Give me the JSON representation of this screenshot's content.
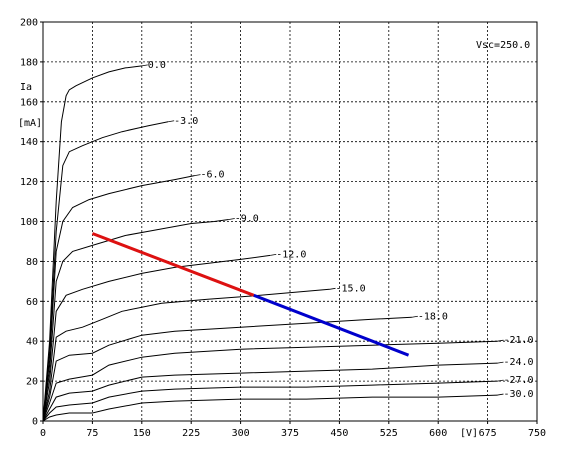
{
  "chart_data": {
    "type": "line",
    "ylabel_top": "Ia",
    "ylabel_unit": "[mA]",
    "xlabel": "[V]",
    "annotation": "Vsc=250.0",
    "xlim": [
      0,
      750
    ],
    "ylim": [
      0,
      200
    ],
    "x_ticks": [
      "0",
      "75",
      "150",
      "225",
      "300",
      "375",
      "450",
      "525",
      "600",
      "675",
      "750"
    ],
    "y_ticks": [
      "0",
      "20",
      "40",
      "60",
      "80",
      "100",
      "120",
      "140",
      "160",
      "180",
      "200"
    ],
    "x_grid": [
      0,
      75,
      150,
      225,
      300,
      375,
      450,
      525,
      600,
      675,
      750
    ],
    "y_grid": [
      0,
      20,
      40,
      60,
      80,
      100,
      120,
      140,
      160,
      180,
      200
    ],
    "grid": true,
    "series": [
      {
        "name": "0.0",
        "x": [
          0,
          10,
          20,
          28,
          35,
          40,
          50,
          75,
          100,
          125,
          150
        ],
        "y": [
          0,
          40,
          110,
          150,
          163,
          166,
          168,
          172,
          175,
          177,
          178
        ]
      },
      {
        "name": "-3.0",
        "x": [
          0,
          10,
          20,
          30,
          40,
          60,
          90,
          120,
          160,
          190
        ],
        "y": [
          0,
          35,
          95,
          128,
          135,
          138,
          142,
          145,
          148,
          150
        ]
      },
      {
        "name": "-6.0",
        "x": [
          0,
          10,
          20,
          30,
          45,
          70,
          100,
          150,
          200,
          230
        ],
        "y": [
          0,
          30,
          85,
          100,
          107,
          111,
          114,
          118,
          121,
          123
        ]
      },
      {
        "name": "-9.0",
        "x": [
          0,
          10,
          20,
          30,
          45,
          75,
          125,
          175,
          225,
          260,
          282
        ],
        "y": [
          0,
          25,
          70,
          80,
          85,
          88,
          93,
          96,
          99,
          100,
          101
        ]
      },
      {
        "name": "-12.0",
        "x": [
          0,
          10,
          20,
          35,
          60,
          100,
          150,
          200,
          250,
          300,
          345
        ],
        "y": [
          0,
          20,
          55,
          63,
          66,
          70,
          74,
          77,
          79,
          81,
          83
        ]
      },
      {
        "name": "-15.0",
        "x": [
          0,
          10,
          20,
          35,
          60,
          90,
          120,
          180,
          250,
          330,
          435
        ],
        "y": [
          0,
          15,
          42,
          45,
          47,
          51,
          55,
          59,
          61,
          63,
          66
        ]
      },
      {
        "name": "-18.0",
        "x": [
          0,
          10,
          20,
          40,
          75,
          100,
          150,
          200,
          300,
          400,
          500,
          560
        ],
        "y": [
          0,
          12,
          30,
          33,
          34,
          38,
          43,
          45,
          47,
          49,
          51,
          52
        ]
      },
      {
        "name": "-21.0",
        "x": [
          0,
          10,
          20,
          40,
          75,
          100,
          150,
          200,
          300,
          400,
          500,
          600,
          690
        ],
        "y": [
          0,
          9,
          19,
          21,
          23,
          28,
          32,
          34,
          36,
          37,
          38,
          39,
          40
        ]
      },
      {
        "name": "-24.0",
        "x": [
          0,
          10,
          20,
          40,
          75,
          100,
          150,
          200,
          300,
          400,
          500,
          600,
          690
        ],
        "y": [
          0,
          6,
          12,
          14,
          15,
          18,
          22,
          23,
          24,
          25,
          26,
          28,
          29
        ]
      },
      {
        "name": "-27.0",
        "x": [
          0,
          10,
          20,
          40,
          75,
          100,
          150,
          200,
          300,
          400,
          500,
          600,
          690
        ],
        "y": [
          0,
          4,
          7,
          8,
          9,
          12,
          15,
          16,
          17,
          17,
          18,
          19,
          20
        ]
      },
      {
        "name": "-30.0",
        "x": [
          0,
          10,
          20,
          40,
          75,
          100,
          150,
          200,
          300,
          400,
          500,
          600,
          690
        ],
        "y": [
          0,
          2,
          3,
          4,
          4,
          6,
          9,
          10,
          11,
          11,
          12,
          12,
          13
        ]
      }
    ],
    "load_line": [
      {
        "x": [
          75,
          320
        ],
        "y": [
          94,
          63
        ],
        "color": "#dd1111"
      },
      {
        "x": [
          320,
          555
        ],
        "y": [
          63,
          33
        ],
        "color": "#0000cc"
      }
    ]
  }
}
